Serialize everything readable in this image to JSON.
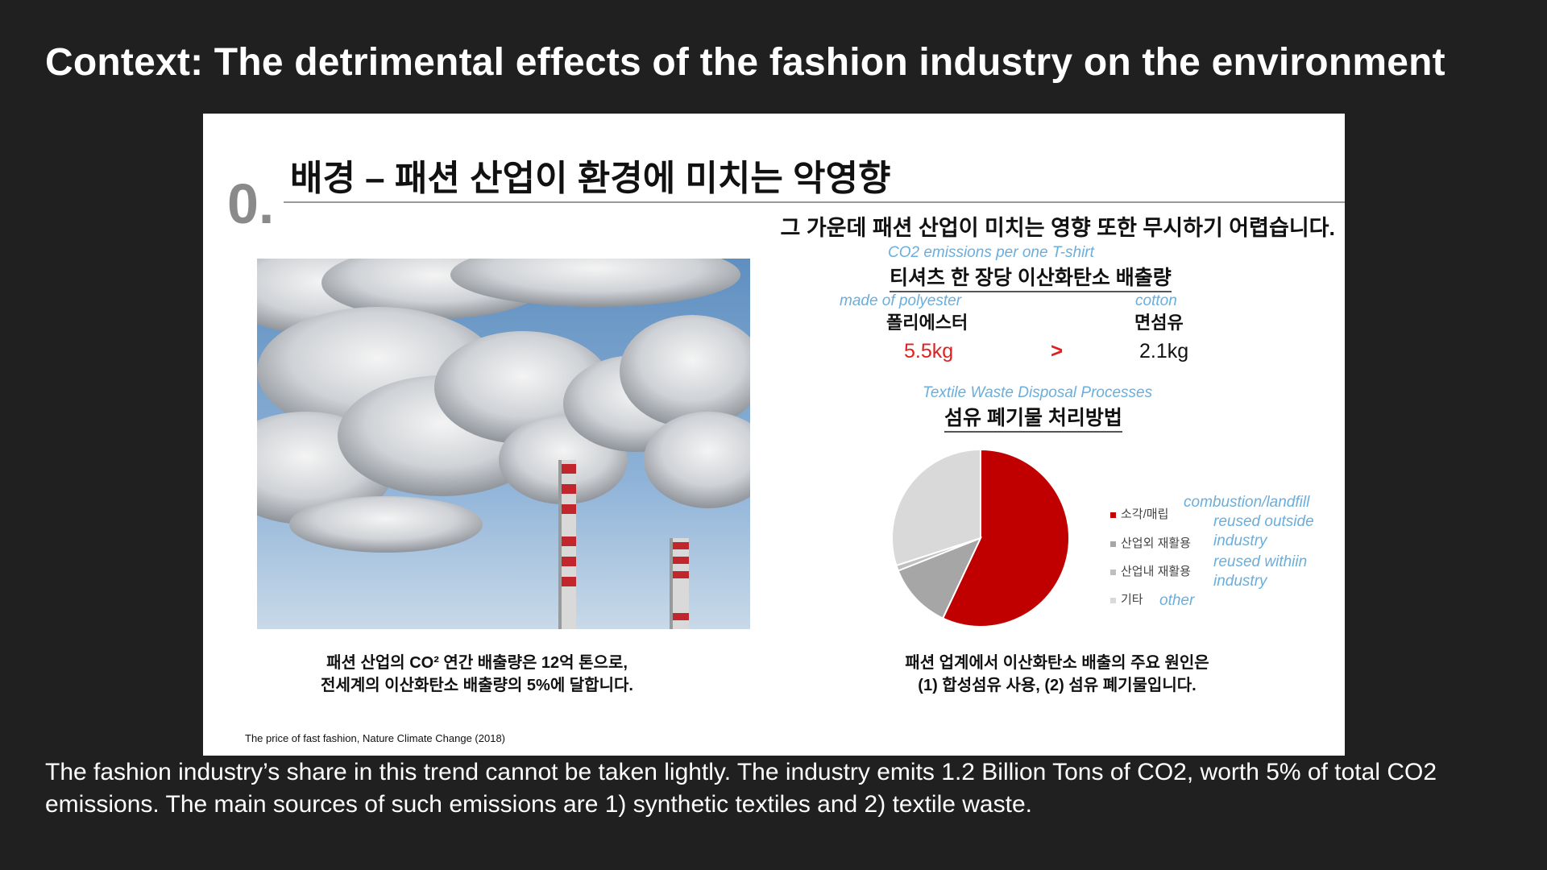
{
  "page": {
    "heading": "Context: The detrimental effects of the fashion industry on the environment",
    "body": "The fashion industry’s share in this trend cannot be taken lightly. The industry emits 1.2 Billion Tons of CO2, worth 5% of total CO2 emissions. The main sources of such emissions are 1) synthetic textiles and 2) textile waste."
  },
  "slide": {
    "number": "0.",
    "title": "배경 – 패션 산업이 환경에 미치는 악영향",
    "subtitle": "그 가운데 패션 산업이 미치는 영향 또한 무시하기 어렵습니다.",
    "tshirt": {
      "en_label": "CO2 emissions per one T-shirt",
      "ko_label": "티셔츠 한 장당 이산화탄소 배출량",
      "polyester_en": "made of polyester",
      "polyester_ko": "폴리에스터",
      "polyester_value": "5.5kg",
      "compare": ">",
      "cotton_en": "cotton",
      "cotton_ko": "면섬유",
      "cotton_value": "2.1kg"
    },
    "waste": {
      "en_label": "Textile Waste Disposal Processes",
      "ko_label": "섬유 폐기물 처리방법"
    },
    "caption_left": [
      "패션 산업의 CO² 연간 배출량은 12억 톤으로,",
      "전세계의 이산화탄소 배출량의 5%에 달합니다."
    ],
    "caption_right": [
      "패션 업계에서 이산화탄소 배출의 주요 원인은",
      "(1) 합성섬유 사용, (2) 섬유 폐기물입니다."
    ],
    "source": "The price of fast fashion, Nature Climate Change (2018)"
  },
  "chart_data": {
    "type": "pie",
    "title": "섬유 폐기물 처리방법",
    "series": [
      {
        "name": "소각/매립",
        "value": 57,
        "color": "#c00000",
        "en": "combustion/landfill"
      },
      {
        "name": "산업외 재활용",
        "value": 12,
        "color": "#a6a6a6",
        "en": "reused outside industry"
      },
      {
        "name": "산업내 재활용",
        "value": 1,
        "color": "#bfbfbf",
        "en": "reused withiin industry"
      },
      {
        "name": "기타",
        "value": 30,
        "color": "#d9d9d9",
        "en": "other"
      }
    ],
    "legend": "right"
  },
  "colors": {
    "page_bg": "#202020",
    "accent_red": "#e02020",
    "annotation_blue": "#6aaedc"
  }
}
